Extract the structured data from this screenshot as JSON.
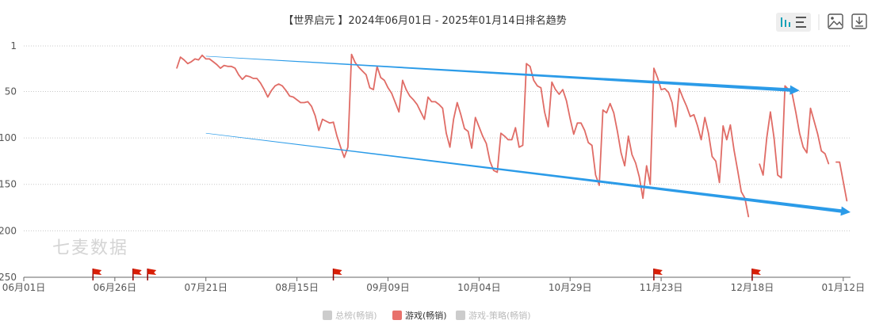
{
  "chart_data": {
    "type": "line",
    "title": "【世界启元 】2024年06月01日 - 2025年01月14日排名趋势",
    "y_reversed": true,
    "ylim": [
      1,
      250
    ],
    "yticks": [
      "1",
      "50",
      "100",
      "150",
      "200",
      "250"
    ],
    "ytick_values": [
      1,
      50,
      100,
      150,
      200,
      250
    ],
    "x_start": "2024-06-01",
    "x_end": "2025-01-14",
    "xticks": [
      "06月01日",
      "06月26日",
      "07月21日",
      "08月15日",
      "09月09日",
      "10月04日",
      "10月29日",
      "11月23日",
      "12月18日",
      "01月12日"
    ],
    "xtick_dates": [
      "2024-06-01",
      "2024-06-26",
      "2024-07-21",
      "2024-08-15",
      "2024-09-09",
      "2024-10-04",
      "2024-10-29",
      "2024-11-23",
      "2024-12-18",
      "2025-01-12"
    ],
    "grid": "horizontal dotted",
    "legend_position": "bottom-center",
    "legend": [
      {
        "name": "总榜(畅销)",
        "color": "#cccccc",
        "active": false
      },
      {
        "name": "游戏(畅销)",
        "color": "#e8716b",
        "active": true
      },
      {
        "name": "游戏-策略(畅销)",
        "color": "#cccccc",
        "active": false
      }
    ],
    "series": [
      {
        "name": "游戏(畅销)",
        "color": "#e06c66",
        "points": [
          [
            "2024-07-13",
            25
          ],
          [
            "2024-07-14",
            13
          ],
          [
            "2024-07-15",
            16
          ],
          [
            "2024-07-16",
            20
          ],
          [
            "2024-07-17",
            18
          ],
          [
            "2024-07-18",
            15
          ],
          [
            "2024-07-19",
            16
          ],
          [
            "2024-07-20",
            11
          ],
          [
            "2024-07-21",
            15
          ],
          [
            "2024-07-22",
            15
          ],
          [
            "2024-07-23",
            18
          ],
          [
            "2024-07-24",
            21
          ],
          [
            "2024-07-25",
            25
          ],
          [
            "2024-07-26",
            22
          ],
          [
            "2024-07-27",
            23
          ],
          [
            "2024-07-28",
            23
          ],
          [
            "2024-07-29",
            25
          ],
          [
            "2024-07-30",
            32
          ],
          [
            "2024-07-31",
            37
          ],
          [
            "2024-08-01",
            33
          ],
          [
            "2024-08-02",
            34
          ],
          [
            "2024-08-03",
            36
          ],
          [
            "2024-08-04",
            36
          ],
          [
            "2024-08-05",
            41
          ],
          [
            "2024-08-06",
            48
          ],
          [
            "2024-08-07",
            56
          ],
          [
            "2024-08-08",
            49
          ],
          [
            "2024-08-09",
            44
          ],
          [
            "2024-08-10",
            42
          ],
          [
            "2024-08-11",
            44
          ],
          [
            "2024-08-12",
            49
          ],
          [
            "2024-08-13",
            55
          ],
          [
            "2024-08-14",
            56
          ],
          [
            "2024-08-15",
            59
          ],
          [
            "2024-08-16",
            62
          ],
          [
            "2024-08-17",
            62
          ],
          [
            "2024-08-18",
            61
          ],
          [
            "2024-08-19",
            66
          ],
          [
            "2024-08-20",
            76
          ],
          [
            "2024-08-21",
            92
          ],
          [
            "2024-08-22",
            80
          ],
          [
            "2024-08-23",
            82
          ],
          [
            "2024-08-24",
            84
          ],
          [
            "2024-08-25",
            83
          ],
          [
            "2024-08-26",
            98
          ],
          [
            "2024-08-27",
            110
          ],
          [
            "2024-08-28",
            121
          ],
          [
            "2024-08-29",
            110
          ],
          [
            "2024-08-30",
            10
          ],
          [
            "2024-08-31",
            19
          ],
          [
            "2024-09-01",
            24
          ],
          [
            "2024-09-02",
            28
          ],
          [
            "2024-09-03",
            32
          ],
          [
            "2024-09-04",
            46
          ],
          [
            "2024-09-05",
            48
          ],
          [
            "2024-09-06",
            23
          ],
          [
            "2024-09-07",
            35
          ],
          [
            "2024-09-08",
            38
          ],
          [
            "2024-09-09",
            46
          ],
          [
            "2024-09-10",
            52
          ],
          [
            "2024-09-11",
            62
          ],
          [
            "2024-09-12",
            72
          ],
          [
            "2024-09-13",
            38
          ],
          [
            "2024-09-14",
            48
          ],
          [
            "2024-09-15",
            55
          ],
          [
            "2024-09-16",
            59
          ],
          [
            "2024-09-17",
            64
          ],
          [
            "2024-09-18",
            72
          ],
          [
            "2024-09-19",
            80
          ],
          [
            "2024-09-20",
            56
          ],
          [
            "2024-09-21",
            61
          ],
          [
            "2024-09-22",
            61
          ],
          [
            "2024-09-23",
            64
          ],
          [
            "2024-09-24",
            68
          ],
          [
            "2024-09-25",
            95
          ],
          [
            "2024-09-26",
            110
          ],
          [
            "2024-09-27",
            80
          ],
          [
            "2024-09-28",
            62
          ],
          [
            "2024-09-29",
            75
          ],
          [
            "2024-09-30",
            90
          ],
          [
            "2024-10-01",
            93
          ],
          [
            "2024-10-02",
            111
          ],
          [
            "2024-10-03",
            78
          ],
          [
            "2024-10-04",
            88
          ],
          [
            "2024-10-05",
            98
          ],
          [
            "2024-10-06",
            106
          ],
          [
            "2024-10-07",
            125
          ],
          [
            "2024-10-08",
            135
          ],
          [
            "2024-10-09",
            137
          ],
          [
            "2024-10-10",
            95
          ],
          [
            "2024-10-11",
            98
          ],
          [
            "2024-10-12",
            102
          ],
          [
            "2024-10-13",
            102
          ],
          [
            "2024-10-14",
            89
          ],
          [
            "2024-10-15",
            110
          ],
          [
            "2024-10-16",
            108
          ],
          [
            "2024-10-17",
            20
          ],
          [
            "2024-10-18",
            23
          ],
          [
            "2024-10-19",
            38
          ],
          [
            "2024-10-20",
            44
          ],
          [
            "2024-10-21",
            46
          ],
          [
            "2024-10-22",
            72
          ],
          [
            "2024-10-23",
            88
          ],
          [
            "2024-10-24",
            40
          ],
          [
            "2024-10-25",
            48
          ],
          [
            "2024-10-26",
            53
          ],
          [
            "2024-10-27",
            48
          ],
          [
            "2024-10-28",
            60
          ],
          [
            "2024-10-29",
            79
          ],
          [
            "2024-10-30",
            96
          ],
          [
            "2024-10-31",
            84
          ],
          [
            "2024-11-01",
            84
          ],
          [
            "2024-11-02",
            92
          ],
          [
            "2024-11-03",
            105
          ],
          [
            "2024-11-04",
            108
          ],
          [
            "2024-11-05",
            140
          ],
          [
            "2024-11-06",
            151
          ],
          [
            "2024-11-07",
            70
          ],
          [
            "2024-11-08",
            73
          ],
          [
            "2024-11-09",
            63
          ],
          [
            "2024-11-10",
            73
          ],
          [
            "2024-11-11",
            93
          ],
          [
            "2024-11-12",
            116
          ],
          [
            "2024-11-13",
            130
          ],
          [
            "2024-11-14",
            98
          ],
          [
            "2024-11-15",
            118
          ],
          [
            "2024-11-16",
            127
          ],
          [
            "2024-11-17",
            142
          ],
          [
            "2024-11-18",
            165
          ],
          [
            "2024-11-19",
            130
          ],
          [
            "2024-11-20",
            150
          ],
          [
            "2024-11-21",
            25
          ],
          [
            "2024-11-22",
            35
          ],
          [
            "2024-11-23",
            48
          ],
          [
            "2024-11-24",
            47
          ],
          [
            "2024-11-25",
            51
          ],
          [
            "2024-11-26",
            62
          ],
          [
            "2024-11-27",
            88
          ],
          [
            "2024-11-28",
            47
          ],
          [
            "2024-11-29",
            57
          ],
          [
            "2024-11-30",
            66
          ],
          [
            "2024-12-01",
            77
          ],
          [
            "2024-12-02",
            75
          ],
          [
            "2024-12-03",
            87
          ],
          [
            "2024-12-04",
            102
          ],
          [
            "2024-12-05",
            78
          ],
          [
            "2024-12-06",
            95
          ],
          [
            "2024-12-07",
            120
          ],
          [
            "2024-12-08",
            125
          ],
          [
            "2024-12-09",
            148
          ],
          [
            "2024-12-10",
            87
          ],
          [
            "2024-12-11",
            102
          ],
          [
            "2024-12-12",
            86
          ],
          [
            "2024-12-13",
            113
          ],
          [
            "2024-12-14",
            135
          ],
          [
            "2024-12-15",
            158
          ],
          [
            "2024-12-16",
            165
          ],
          [
            "2024-12-17",
            185
          ],
          null,
          [
            "2024-12-20",
            128
          ],
          [
            "2024-12-21",
            140
          ],
          [
            "2024-12-22",
            100
          ],
          [
            "2024-12-23",
            72
          ],
          [
            "2024-12-24",
            100
          ],
          [
            "2024-12-25",
            140
          ],
          [
            "2024-12-26",
            143
          ],
          [
            "2024-12-27",
            44
          ],
          [
            "2024-12-28",
            48
          ],
          [
            "2024-12-29",
            53
          ],
          [
            "2024-12-30",
            73
          ],
          [
            "2024-12-31",
            95
          ],
          [
            "2025-01-01",
            110
          ],
          [
            "2025-01-02",
            116
          ],
          [
            "2025-01-03",
            68
          ],
          [
            "2025-01-04",
            82
          ],
          [
            "2025-01-05",
            96
          ],
          [
            "2025-01-06",
            114
          ],
          [
            "2025-01-07",
            117
          ],
          [
            "2025-01-08",
            128
          ],
          null,
          [
            "2025-01-10",
            126
          ],
          [
            "2025-01-11",
            126
          ],
          [
            "2025-01-12",
            147
          ],
          [
            "2025-01-13",
            168
          ]
        ]
      }
    ],
    "trend_arrows": [
      {
        "from": [
          "2024-07-21",
          12
        ],
        "to": [
          "2024-12-31",
          49
        ],
        "color": "#2b9be8"
      },
      {
        "from": [
          "2024-07-21",
          95
        ],
        "to": [
          "2025-01-14",
          180
        ],
        "color": "#2b9be8"
      }
    ],
    "event_flag_dates": [
      "2024-06-20",
      "2024-07-01",
      "2024-07-05",
      "2024-08-25",
      "2024-11-21",
      "2024-12-18"
    ],
    "flag_color": "#d81e06",
    "watermark": "七麦数据"
  },
  "toolbar": {
    "icons": [
      "chart-type-toggle-icon",
      "save-image-icon",
      "download-icon"
    ]
  }
}
